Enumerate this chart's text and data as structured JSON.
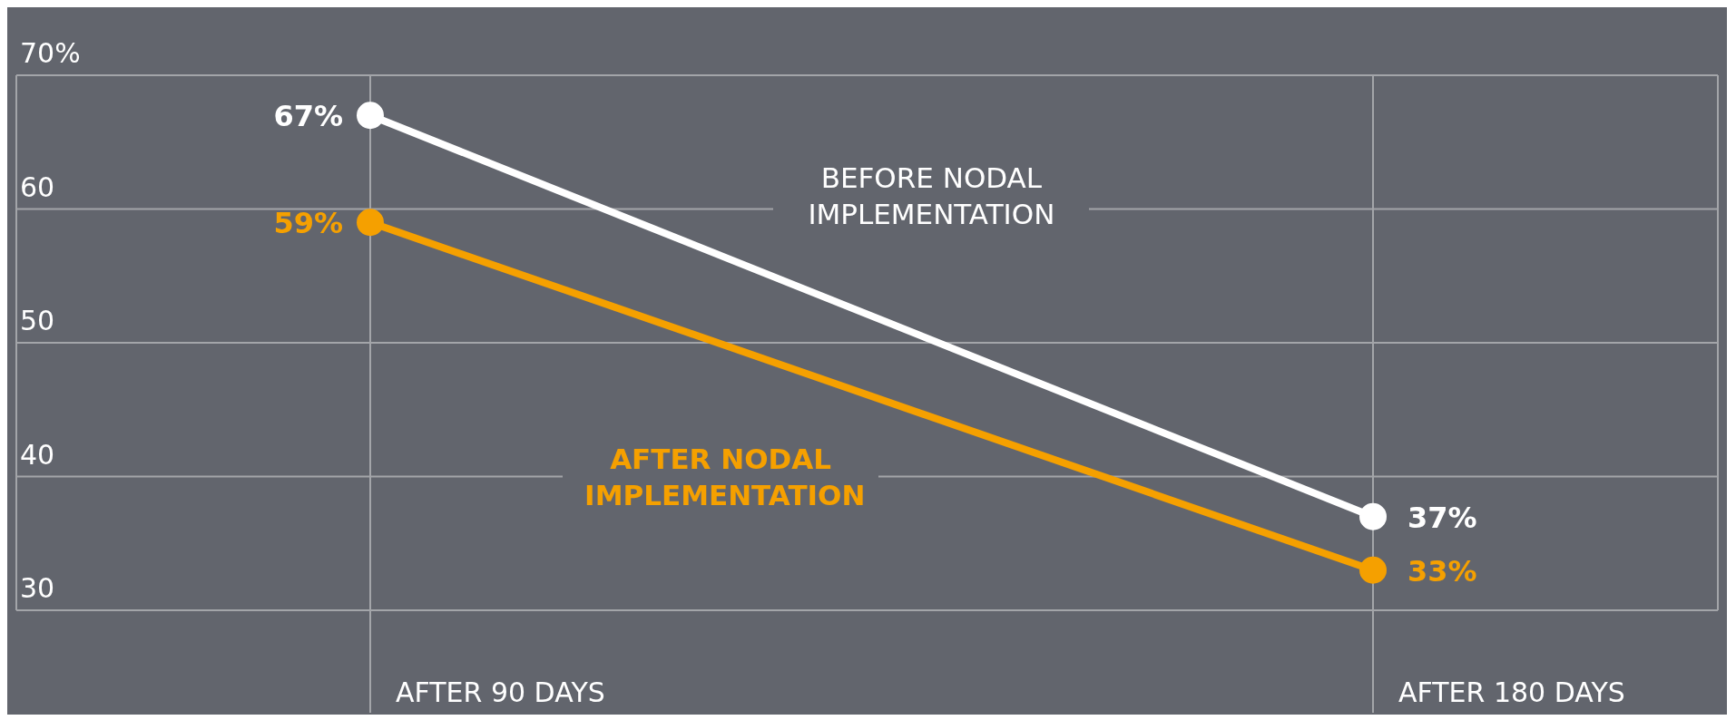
{
  "chart_data": {
    "type": "line",
    "categories": [
      "AFTER 90 DAYS",
      "AFTER 180 DAYS"
    ],
    "series": [
      {
        "name": "BEFORE NODAL IMPLEMENTATION",
        "color": "#ffffff",
        "values": [
          67,
          37
        ],
        "value_labels": [
          "67%",
          "37%"
        ]
      },
      {
        "name": "AFTER NODAL IMPLEMENTATION",
        "color": "#f5a000",
        "values": [
          59,
          33
        ],
        "value_labels": [
          "59%",
          "33%"
        ]
      }
    ],
    "ylim": [
      30,
      70
    ],
    "yticks": [
      {
        "value": 70,
        "label": "70%"
      },
      60,
      50,
      40,
      30
    ],
    "grid": true,
    "marker": "circle",
    "line_style": "solid"
  }
}
